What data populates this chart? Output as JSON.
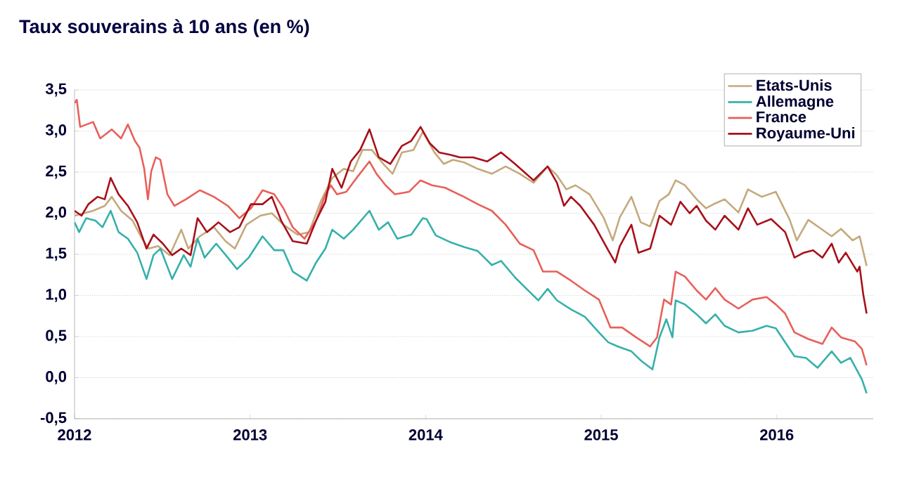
{
  "chart_data": {
    "type": "line",
    "title": "Taux souverains à 10 ans (en %)",
    "xlim": [
      2012,
      2016.55
    ],
    "xticks": [
      2012,
      2013,
      2014,
      2015,
      2016
    ],
    "ylim": [
      -0.5,
      3.5
    ],
    "yticks": [
      {
        "value": -0.5,
        "label": "-0,5"
      },
      {
        "value": 0,
        "label": "0,0"
      },
      {
        "value": 0.5,
        "label": "0,5"
      },
      {
        "value": 1,
        "label": "1,0"
      },
      {
        "value": 1.5,
        "label": "1,5"
      },
      {
        "value": 2,
        "label": "2,0"
      },
      {
        "value": 2.5,
        "label": "2,5"
      },
      {
        "value": 3,
        "label": "3,0"
      },
      {
        "value": 3.5,
        "label": "3,5"
      }
    ],
    "grid": "y",
    "legend": "top right",
    "marker": "none",
    "line_style": "solid",
    "series": [
      {
        "name": "Etats-Unis",
        "color": "#c4a97c",
        "x": [
          2012.0,
          2012.053,
          2012.106,
          2012.172,
          2012.212,
          2012.265,
          2012.331,
          2012.384,
          2012.423,
          2012.476,
          2012.542,
          2012.608,
          2012.648,
          2012.714,
          2012.794,
          2012.86,
          2012.913,
          2012.979,
          2013.058,
          2013.124,
          2013.19,
          2013.27,
          2013.336,
          2013.402,
          2013.468,
          2013.534,
          2013.587,
          2013.64,
          2013.693,
          2013.759,
          2013.812,
          2013.865,
          2013.931,
          2013.984,
          2014.05,
          2014.103,
          2014.156,
          2014.218,
          2014.297,
          2014.377,
          2014.456,
          2014.536,
          2014.615,
          2014.695,
          2014.748,
          2014.801,
          2014.854,
          2014.934,
          2015.013,
          2015.066,
          2015.106,
          2015.172,
          2015.225,
          2015.279,
          2015.332,
          2015.385,
          2015.424,
          2015.477,
          2015.544,
          2015.597,
          2015.65,
          2015.703,
          2015.782,
          2015.836,
          2015.915,
          2015.995,
          2016.074,
          2016.114,
          2016.18,
          2016.233,
          2016.313,
          2016.366,
          2016.432,
          2016.472,
          2016.512
        ],
        "values": [
          1.97,
          2.0,
          2.03,
          2.09,
          2.2,
          2.03,
          1.91,
          1.69,
          1.57,
          1.6,
          1.49,
          1.8,
          1.57,
          1.72,
          1.83,
          1.66,
          1.57,
          1.86,
          1.97,
          2.0,
          1.86,
          1.74,
          1.77,
          2.14,
          2.43,
          2.54,
          2.51,
          2.77,
          2.77,
          2.6,
          2.48,
          2.74,
          2.77,
          2.99,
          2.74,
          2.6,
          2.65,
          2.62,
          2.54,
          2.48,
          2.57,
          2.48,
          2.37,
          2.57,
          2.46,
          2.29,
          2.34,
          2.23,
          1.95,
          1.67,
          1.95,
          2.2,
          1.89,
          1.84,
          2.15,
          2.23,
          2.4,
          2.34,
          2.17,
          2.06,
          2.12,
          2.17,
          2.01,
          2.29,
          2.2,
          2.26,
          1.92,
          1.67,
          1.92,
          1.84,
          1.72,
          1.81,
          1.67,
          1.72,
          1.36
        ]
      },
      {
        "name": "Allemagne",
        "color": "#36b0aa",
        "x": [
          2012.0,
          2012.026,
          2012.066,
          2012.119,
          2012.159,
          2012.206,
          2012.251,
          2012.304,
          2012.357,
          2012.41,
          2012.45,
          2012.489,
          2012.556,
          2012.622,
          2012.661,
          2012.701,
          2012.741,
          2012.807,
          2012.873,
          2012.926,
          2012.992,
          2013.071,
          2013.138,
          2013.19,
          2013.243,
          2013.323,
          2013.376,
          2013.429,
          2013.468,
          2013.534,
          2013.587,
          2013.68,
          2013.733,
          2013.786,
          2013.839,
          2013.918,
          2013.984,
          2014.005,
          2014.058,
          2014.138,
          2014.218,
          2014.297,
          2014.377,
          2014.43,
          2014.509,
          2014.589,
          2014.642,
          2014.695,
          2014.748,
          2014.828,
          2014.907,
          2014.987,
          2015.04,
          2015.093,
          2015.172,
          2015.225,
          2015.292,
          2015.332,
          2015.371,
          2015.406,
          2015.424,
          2015.477,
          2015.544,
          2015.597,
          2015.65,
          2015.703,
          2015.782,
          2015.862,
          2015.942,
          2015.995,
          2016.048,
          2016.101,
          2016.167,
          2016.233,
          2016.313,
          2016.366,
          2016.419,
          2016.485,
          2016.512
        ],
        "values": [
          1.89,
          1.77,
          1.94,
          1.91,
          1.83,
          2.03,
          1.77,
          1.69,
          1.52,
          1.2,
          1.49,
          1.57,
          1.2,
          1.49,
          1.35,
          1.69,
          1.46,
          1.63,
          1.46,
          1.32,
          1.46,
          1.72,
          1.55,
          1.55,
          1.29,
          1.18,
          1.4,
          1.57,
          1.8,
          1.69,
          1.8,
          2.03,
          1.8,
          1.89,
          1.69,
          1.74,
          1.94,
          1.93,
          1.73,
          1.65,
          1.59,
          1.54,
          1.37,
          1.42,
          1.22,
          1.05,
          0.94,
          1.08,
          0.94,
          0.83,
          0.74,
          0.55,
          0.43,
          0.38,
          0.32,
          0.21,
          0.1,
          0.49,
          0.71,
          0.49,
          0.94,
          0.89,
          0.77,
          0.66,
          0.77,
          0.63,
          0.55,
          0.57,
          0.63,
          0.6,
          0.43,
          0.26,
          0.24,
          0.12,
          0.32,
          0.18,
          0.24,
          -0.02,
          -0.19
        ]
      },
      {
        "name": "France",
        "color": "#e8605a",
        "x": [
          2012.0,
          2012.013,
          2012.032,
          2012.106,
          2012.146,
          2012.212,
          2012.265,
          2012.304,
          2012.344,
          2012.37,
          2012.397,
          2012.418,
          2012.437,
          2012.463,
          2012.489,
          2012.529,
          2012.569,
          2012.635,
          2012.714,
          2012.794,
          2012.873,
          2012.939,
          2013.005,
          2013.071,
          2013.138,
          2013.19,
          2013.243,
          2013.31,
          2013.376,
          2013.429,
          2013.46,
          2013.495,
          2013.548,
          2013.614,
          2013.68,
          2013.72,
          2013.772,
          2013.825,
          2013.905,
          2013.971,
          2014.037,
          2014.111,
          2014.218,
          2014.297,
          2014.377,
          2014.456,
          2014.536,
          2014.615,
          2014.668,
          2014.748,
          2014.828,
          2014.907,
          2014.987,
          2015.053,
          2015.119,
          2015.199,
          2015.279,
          2015.318,
          2015.358,
          2015.398,
          2015.424,
          2015.477,
          2015.544,
          2015.597,
          2015.65,
          2015.703,
          2015.782,
          2015.862,
          2015.942,
          2015.995,
          2016.048,
          2016.101,
          2016.18,
          2016.26,
          2016.313,
          2016.366,
          2016.446,
          2016.485,
          2016.512
        ],
        "values": [
          3.34,
          3.38,
          3.05,
          3.11,
          2.91,
          3.02,
          2.91,
          3.08,
          2.88,
          2.8,
          2.54,
          2.17,
          2.51,
          2.68,
          2.65,
          2.23,
          2.09,
          2.17,
          2.28,
          2.2,
          2.09,
          1.94,
          2.06,
          2.28,
          2.23,
          2.06,
          1.83,
          1.69,
          1.91,
          2.23,
          2.34,
          2.23,
          2.26,
          2.45,
          2.63,
          2.48,
          2.34,
          2.23,
          2.26,
          2.4,
          2.34,
          2.31,
          2.2,
          2.11,
          2.03,
          1.86,
          1.63,
          1.55,
          1.29,
          1.29,
          1.18,
          1.06,
          0.95,
          0.61,
          0.61,
          0.49,
          0.38,
          0.49,
          0.95,
          0.89,
          1.29,
          1.23,
          1.06,
          0.95,
          1.09,
          0.95,
          0.84,
          0.95,
          0.98,
          0.89,
          0.78,
          0.55,
          0.47,
          0.41,
          0.61,
          0.49,
          0.44,
          0.35,
          0.15
        ]
      },
      {
        "name": "Royaume-Uni",
        "color": "#a8101a",
        "x": [
          2012.0,
          2012.04,
          2012.079,
          2012.132,
          2012.172,
          2012.206,
          2012.251,
          2012.304,
          2012.357,
          2012.41,
          2012.45,
          2012.503,
          2012.556,
          2012.608,
          2012.661,
          2012.701,
          2012.754,
          2012.82,
          2012.886,
          2012.939,
          2013.005,
          2013.071,
          2013.124,
          2013.177,
          2013.243,
          2013.323,
          2013.376,
          2013.429,
          2013.468,
          2013.521,
          2013.574,
          2013.627,
          2013.68,
          2013.733,
          2013.799,
          2013.865,
          2013.918,
          2013.971,
          2014.024,
          2014.077,
          2014.143,
          2014.196,
          2014.271,
          2014.35,
          2014.43,
          2014.509,
          2014.615,
          2014.695,
          2014.748,
          2014.788,
          2014.828,
          2014.881,
          2014.96,
          2015.04,
          2015.08,
          2015.106,
          2015.172,
          2015.212,
          2015.279,
          2015.332,
          2015.398,
          2015.451,
          2015.504,
          2015.544,
          2015.597,
          2015.65,
          2015.703,
          2015.782,
          2015.836,
          2015.889,
          2015.968,
          2016.048,
          2016.101,
          2016.154,
          2016.207,
          2016.26,
          2016.313,
          2016.353,
          2016.393,
          2016.459,
          2016.472,
          2016.493,
          2016.512
        ],
        "values": [
          2.03,
          1.97,
          2.11,
          2.2,
          2.17,
          2.43,
          2.23,
          2.09,
          1.89,
          1.57,
          1.74,
          1.63,
          1.49,
          1.57,
          1.49,
          1.94,
          1.77,
          1.89,
          1.77,
          1.83,
          2.11,
          2.11,
          2.2,
          1.91,
          1.66,
          1.63,
          1.91,
          2.14,
          2.54,
          2.31,
          2.63,
          2.77,
          3.02,
          2.68,
          2.6,
          2.82,
          2.88,
          3.05,
          2.85,
          2.74,
          2.71,
          2.68,
          2.68,
          2.63,
          2.74,
          2.6,
          2.4,
          2.57,
          2.37,
          2.09,
          2.2,
          2.09,
          1.86,
          1.55,
          1.4,
          1.6,
          1.86,
          1.52,
          1.57,
          1.97,
          1.86,
          2.14,
          2.0,
          2.09,
          1.91,
          1.8,
          1.97,
          1.8,
          2.06,
          1.86,
          1.93,
          1.77,
          1.46,
          1.52,
          1.55,
          1.46,
          1.63,
          1.4,
          1.52,
          1.29,
          1.35,
          1.01,
          0.78
        ]
      }
    ]
  }
}
